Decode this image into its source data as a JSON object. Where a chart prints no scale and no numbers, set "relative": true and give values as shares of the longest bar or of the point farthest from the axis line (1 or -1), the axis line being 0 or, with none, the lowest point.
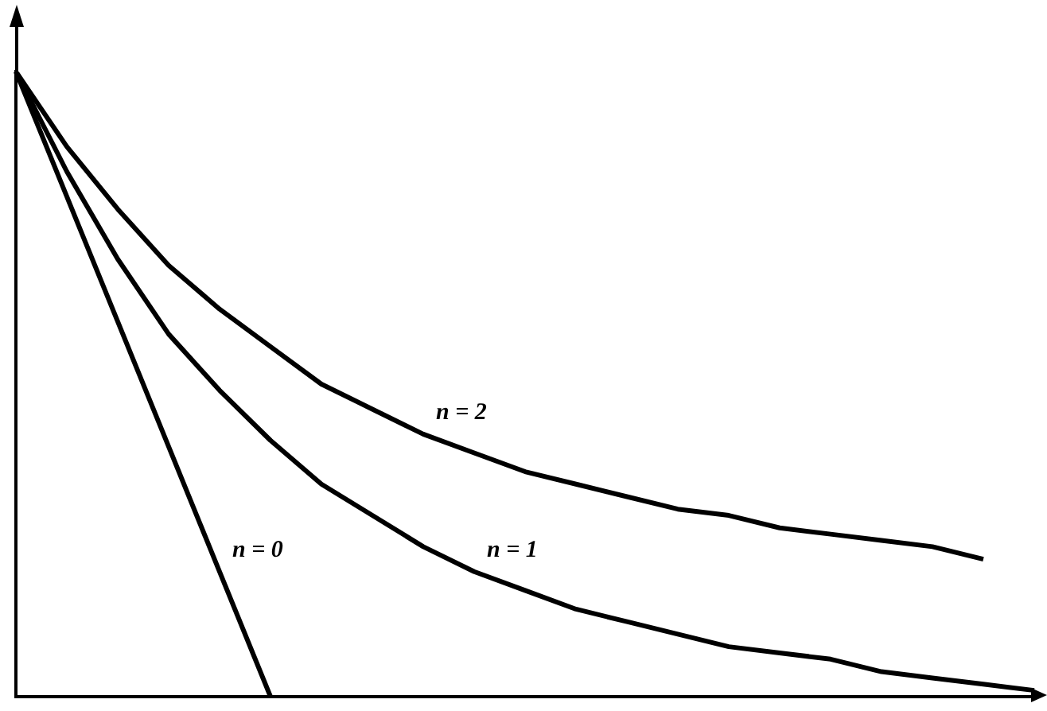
{
  "chart_data": {
    "type": "line",
    "relative": true,
    "legend": false,
    "grid": false,
    "marker": "none",
    "line_style": "solid",
    "categories": [
      null,
      null,
      null,
      null,
      null,
      null,
      null,
      null,
      null,
      null,
      null,
      null,
      null,
      null,
      null,
      null,
      null,
      null,
      null,
      null,
      null
    ],
    "series": [
      {
        "name": "n = 0",
        "color": "#000000",
        "values": [
          1,
          0.8,
          0.6,
          0.4,
          0.2,
          0,
          null,
          null,
          null,
          null,
          null,
          null,
          null,
          null,
          null,
          null,
          null,
          null,
          null,
          null,
          null
        ]
      },
      {
        "name": "n = 1",
        "color": "#000000",
        "values": [
          1,
          0.84,
          0.7,
          0.58,
          0.49,
          0.41,
          0.34,
          0.29,
          0.24,
          0.2,
          0.17,
          0.14,
          0.12,
          0.1,
          0.08,
          0.07,
          0.06,
          0.04,
          0.03,
          0.02,
          0.01
        ]
      },
      {
        "name": "n = 2",
        "color": "#000000",
        "values": [
          1,
          0.88,
          0.78,
          0.69,
          0.62,
          0.56,
          0.5,
          0.46,
          0.42,
          0.39,
          0.36,
          0.34,
          0.32,
          0.3,
          0.29,
          0.27,
          0.26,
          0.25,
          0.24,
          0.22,
          null
        ]
      }
    ]
  }
}
